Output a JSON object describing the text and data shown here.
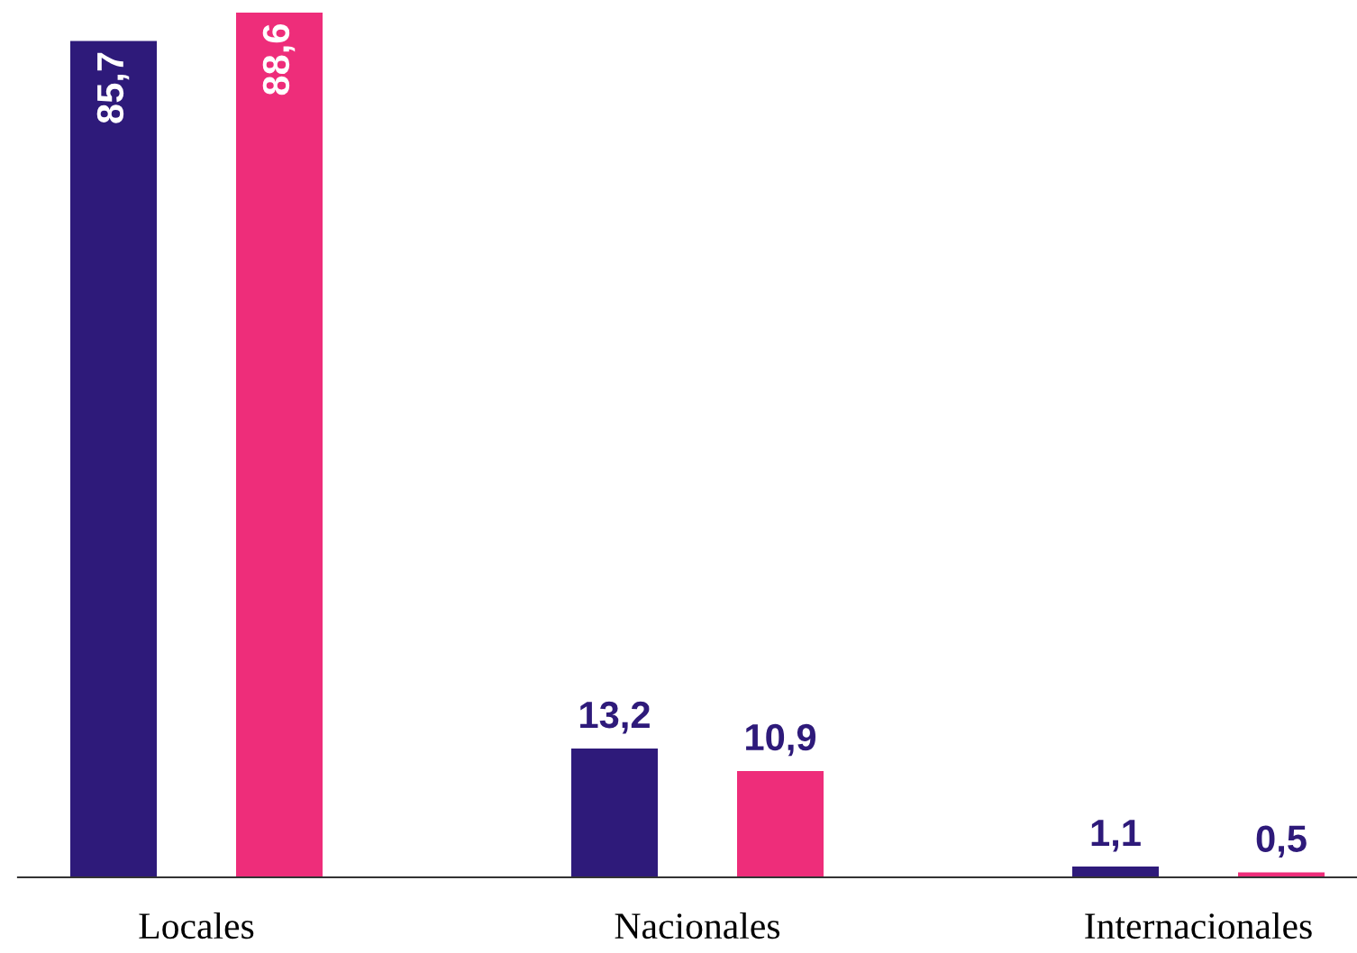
{
  "chart_data": {
    "type": "bar",
    "categories": [
      "Locales",
      "Nacionales",
      "Internacionales"
    ],
    "series": [
      {
        "color": "#2e1a7a",
        "values": [
          85.7,
          13.2,
          1.1
        ],
        "value_labels": [
          "85,7",
          "13,2",
          "1,1"
        ]
      },
      {
        "color": "#ee2d7a",
        "values": [
          88.6,
          10.9,
          0.5
        ],
        "value_labels": [
          "88,6",
          "10,9",
          "0,5"
        ]
      }
    ],
    "grid": false,
    "legend": false,
    "tick_labels": "x"
  }
}
